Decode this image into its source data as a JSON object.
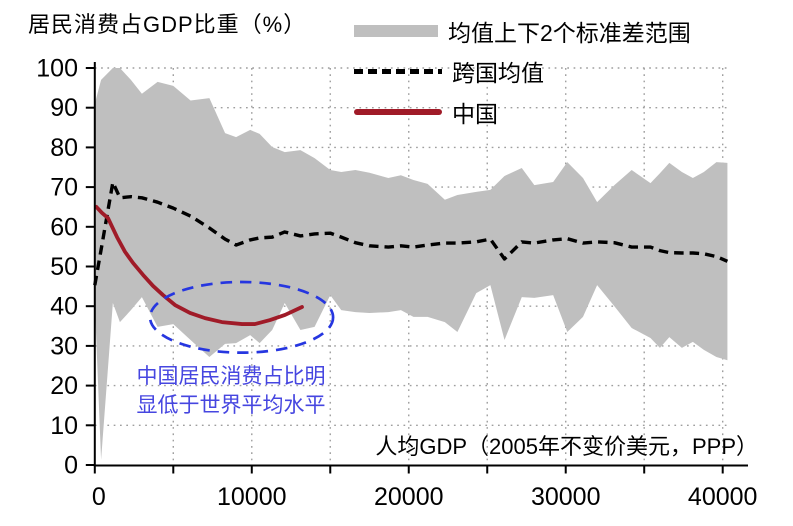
{
  "title": "居民消费占GDP比重（%）",
  "legend": {
    "band_label": "均值上下2个标准差范围",
    "mean_label": "跨国均值",
    "china_label": "中国"
  },
  "annotation": {
    "line1": "中国居民消费占比明",
    "line2": "显低于世界平均水平"
  },
  "x_axis_label": "人均GDP（2005年不变价美元，PPP）",
  "colors": {
    "band": "#bfbfbf",
    "mean": "#000000",
    "china": "#a01b28",
    "ellipse": "#2636e0",
    "annotation_text": "#4646e0",
    "grid": "#9e9e9e",
    "axis": "#000000"
  },
  "chart_data": {
    "type": "area",
    "title": "居民消费占GDP比重（%）",
    "xlabel": "人均GDP（2005年不变价美元，PPP）",
    "ylabel": "居民消费占GDP比重（%）",
    "xlim": [
      0,
      40500
    ],
    "ylim": [
      0,
      100
    ],
    "x_tick_labels": [
      "0",
      "10000",
      "20000",
      "30000",
      "40000"
    ],
    "x_major_ticks": [
      0,
      10000,
      20000,
      30000,
      40000
    ],
    "x_minor_tick_step": 5000,
    "y_ticks": [
      0,
      10,
      20,
      30,
      40,
      50,
      60,
      70,
      80,
      90,
      100
    ],
    "grid": "dotted, horizontal every 10, vertical every 5000",
    "legend_position": "top-right",
    "series": [
      {
        "name": "均值上下2个标准差范围",
        "type": "band",
        "x": [
          0,
          400,
          1150,
          1600,
          2300,
          3000,
          4000,
          5000,
          6100,
          7300,
          8300,
          9000,
          9900,
          10500,
          11300,
          12100,
          13100,
          14000,
          15000,
          15700,
          16600,
          17500,
          18700,
          19500,
          20300,
          21200,
          22300,
          23100,
          24300,
          25200,
          26100,
          27200,
          28000,
          29200,
          30100,
          31100,
          32000,
          33100,
          34200,
          35400,
          36000,
          36600,
          37400,
          38100,
          38800,
          39600,
          40300
        ],
        "upper": [
          91,
          97,
          100,
          100,
          97,
          93.5,
          96.5,
          95.5,
          91.8,
          92.4,
          83.6,
          82.6,
          84.4,
          83.4,
          80.1,
          78.8,
          79.3,
          77.3,
          74.3,
          73.8,
          74.3,
          73.6,
          72.3,
          73.0,
          71.8,
          70.8,
          66.8,
          68.0,
          68.8,
          69.3,
          72.8,
          74.8,
          70.5,
          71.3,
          76.3,
          72.3,
          66.2,
          70.5,
          74.3,
          71.0,
          73.5,
          76.1,
          73.8,
          72.3,
          73.8,
          76.3,
          76.1
        ],
        "lower": [
          41,
          1.3,
          40.8,
          36.0,
          39.0,
          42.3,
          34.8,
          35.5,
          31.5,
          27.2,
          30.5,
          30.7,
          32.7,
          30.7,
          34.0,
          40.8,
          34.0,
          34.8,
          42.8,
          39.0,
          38.5,
          38.3,
          38.5,
          39.0,
          37.3,
          37.3,
          36.0,
          33.5,
          43.3,
          45.3,
          31.5,
          42.3,
          42.1,
          42.8,
          33.5,
          37.3,
          45.3,
          40.0,
          34.5,
          32.0,
          29.5,
          32.2,
          29.5,
          31.0,
          29.0,
          27.2,
          26.4
        ]
      },
      {
        "name": "跨国均值",
        "type": "dashed-line",
        "x": [
          0,
          400,
          1150,
          1600,
          2300,
          3000,
          4000,
          5000,
          6100,
          7300,
          8300,
          9000,
          9900,
          10500,
          11300,
          12100,
          13100,
          14000,
          15000,
          15700,
          16600,
          17500,
          18700,
          19500,
          20300,
          21200,
          22300,
          23100,
          24300,
          25200,
          26100,
          27200,
          28000,
          29200,
          30100,
          31100,
          32000,
          33100,
          34200,
          35400,
          36000,
          36600,
          37400,
          38100,
          38800,
          39600,
          40300
        ],
        "y": [
          45.3,
          54.2,
          71.2,
          67.3,
          67.6,
          67.3,
          66.2,
          64.7,
          62.7,
          59.7,
          56.9,
          55.4,
          56.7,
          57.2,
          57.4,
          58.7,
          57.7,
          58.2,
          58.4,
          57.4,
          56.0,
          55.2,
          54.9,
          55.2,
          54.9,
          55.4,
          55.9,
          55.9,
          56.2,
          56.9,
          51.9,
          56.2,
          55.9,
          56.7,
          57.0,
          55.9,
          56.2,
          56.0,
          54.9,
          54.9,
          54.0,
          53.5,
          53.4,
          53.4,
          53.2,
          52.5,
          51.3
        ]
      },
      {
        "name": "中国",
        "type": "line",
        "x": [
          100,
          460,
          840,
          1415,
          1925,
          2435,
          3070,
          3710,
          4345,
          5110,
          6065,
          7020,
          8100,
          9380,
          10200,
          11160,
          12115,
          13200
        ],
        "y": [
          65.0,
          63.5,
          62.2,
          57.4,
          53.7,
          50.9,
          47.9,
          45.1,
          42.8,
          40.3,
          38.3,
          37.0,
          36.0,
          35.5,
          35.5,
          36.5,
          37.8,
          39.8
        ]
      }
    ],
    "highlight_ellipse": {
      "cx": 9350,
      "cy": 37.2,
      "rx": 5830,
      "ry": 8.9
    },
    "annotation_text": "中国居民消费占比明显低于世界平均水平"
  }
}
